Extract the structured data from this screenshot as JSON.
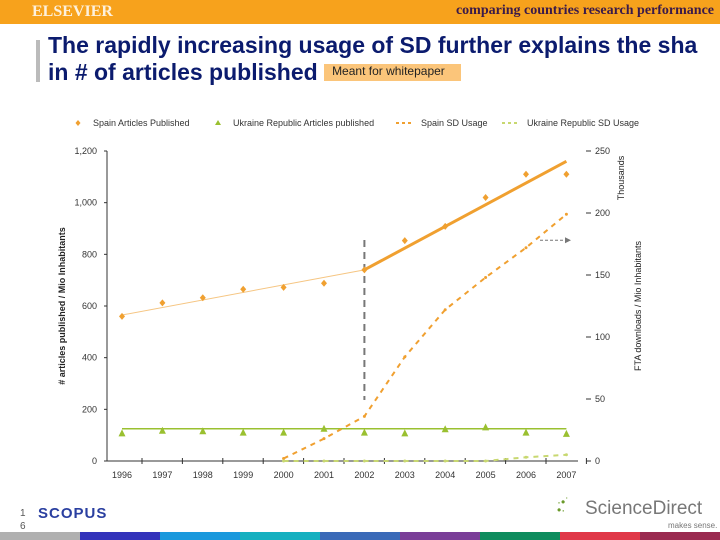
{
  "header": {
    "logo": "ELSEVIER",
    "subtitle": "comparing countries research performance"
  },
  "slide": {
    "title_line1": "The rapidly increasing usage of SD further explains the sha",
    "title_line2": "in # of articles published",
    "note": "Meant for whitepaper"
  },
  "footer": {
    "page_number": "1\n6",
    "page_a": "1",
    "page_b": "6",
    "scopus": "SCOPUS",
    "sciencedirect": "ScienceDirect",
    "tagline": "makes sense.",
    "bar_colors": [
      "#b0b0b0",
      "#3333bb",
      "#1a99dd",
      "#15b0c0",
      "#3a6ab8",
      "#7a3e98",
      "#0e8c5e",
      "#e03848",
      "#9a2a50"
    ]
  },
  "colors": {
    "spain": "#f0a030",
    "ukraine": "#9ac030",
    "ukraine_sd": "#c8d870",
    "annotation": "#777777"
  },
  "chart_data": {
    "type": "line",
    "legend_position": "top",
    "categories": [
      "1996",
      "1997",
      "1998",
      "1999",
      "2000",
      "2001",
      "2002",
      "2003",
      "2004",
      "2005",
      "2006",
      "2007"
    ],
    "ylabel": "# articles published / Mio Inhabitants",
    "ylabel_right": "FTA downloads / Mio Inhabitants",
    "yunit_right": "Thousands",
    "ylim": [
      0,
      1200
    ],
    "yticks": [
      "0",
      "200",
      "400",
      "600",
      "800",
      "1,000",
      "1,200"
    ],
    "ylim_right": [
      0,
      250
    ],
    "yticks_right": [
      "0",
      "50",
      "100",
      "150",
      "200",
      "250"
    ],
    "series": [
      {
        "name": "Spain Articles Published",
        "axis": "left",
        "marker": "diamond",
        "values": [
          560,
          612,
          632,
          665,
          672,
          688,
          740,
          853,
          908,
          1020,
          1110,
          1110
        ]
      },
      {
        "name": "Ukraine Republic Articles published",
        "axis": "left",
        "marker": "triangle",
        "values": [
          107,
          117,
          115,
          110,
          110,
          125,
          110,
          107,
          123,
          130,
          110,
          105
        ]
      },
      {
        "name": "Spain SD Usage",
        "axis": "right",
        "style": "dashed",
        "values": [
          null,
          null,
          null,
          null,
          2,
          18,
          36,
          84,
          122,
          148,
          172,
          199
        ]
      },
      {
        "name": "Ukraine Republic SD Usage",
        "axis": "right",
        "style": "dashed",
        "values": [
          null,
          null,
          null,
          null,
          0,
          0,
          0,
          0,
          0,
          0,
          3,
          5
        ]
      }
    ],
    "trendlines": [
      {
        "series": "Spain Articles Published",
        "from": [
          "1996",
          565
        ],
        "to": [
          "2002",
          740
        ]
      },
      {
        "series": "Spain Articles Published",
        "from": [
          "2002",
          740
        ],
        "to": [
          "2007",
          1160
        ]
      },
      {
        "series": "Ukraine Republic Articles published",
        "from": [
          "1996",
          125
        ],
        "to": [
          "2007",
          125
        ]
      }
    ]
  }
}
